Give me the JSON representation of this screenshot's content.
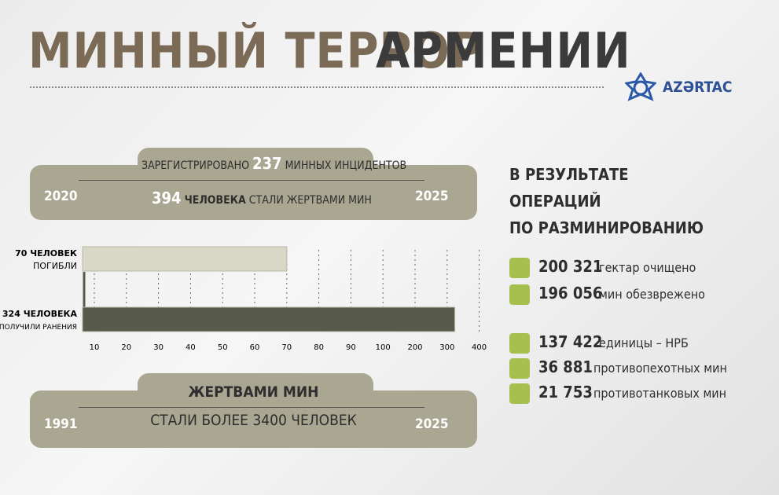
{
  "header": {
    "title_part1": "МИННЫЙ ТЕРРОР",
    "title_part2": "АРМЕНИИ",
    "logo": "AZƏRTAC"
  },
  "incidents": {
    "prefix": "ЗАРЕГИСТРИРОВАНО",
    "count": "237",
    "suffix": "МИННЫХ ИНЦИДЕНТОВ",
    "start_year": "2020",
    "end_year": "2025",
    "victims": "394",
    "victims_unit": "ЧЕЛОВЕКА",
    "victims_text": "СТАЛИ ЖЕРТВАМИ МИН"
  },
  "chart_data": {
    "type": "bar",
    "orientation": "horizontal",
    "categories": [
      "ПОГИБЛИ",
      "ПОЛУЧИЛИ РАНЕНИЯ"
    ],
    "values": [
      70,
      324
    ],
    "value_labels": [
      "70 ЧЕЛОВЕК",
      "324 ЧЕЛОВЕКА"
    ],
    "colors": [
      "#d9d7c8",
      "#585a4b"
    ],
    "xlim": [
      0,
      400
    ],
    "xticks": [
      10,
      20,
      30,
      40,
      50,
      60,
      70,
      80,
      90,
      100,
      200,
      300,
      400
    ],
    "grid": true
  },
  "history": {
    "title": "ЖЕРТВАМИ МИН",
    "text": "СТАЛИ БОЛЕЕ 3400 ЧЕЛОВЕК",
    "start_year": "1991",
    "end_year": "2025"
  },
  "demining": {
    "heading": [
      "В РЕЗУЛЬТАТЕ",
      "ОПЕРАЦИЙ",
      "ПО РАЗМИНИРОВАНИЮ"
    ],
    "items": [
      {
        "value": "200 321",
        "text": "гектар очищено"
      },
      {
        "value": "196 056",
        "text": "мин обезврежено"
      },
      {
        "value": "137 422",
        "text": "единицы – НРБ"
      },
      {
        "value": "36 881",
        "text": "противопехотных мин"
      },
      {
        "value": "21 753",
        "text": "противотанковых мин"
      }
    ]
  }
}
